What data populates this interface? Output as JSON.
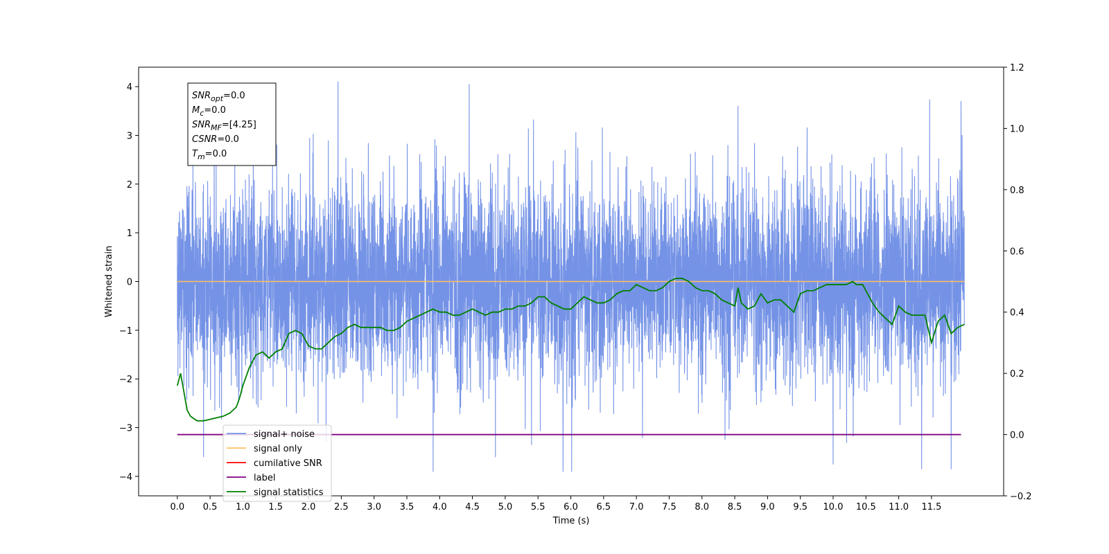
{
  "chart_data": {
    "type": "line",
    "xlabel": "Time (s)",
    "ylabel": "Whitened strain",
    "xlim": [
      -0.59,
      12.6
    ],
    "ylim": [
      -4.4,
      4.4
    ],
    "y2lim": [
      -0.2,
      1.2
    ],
    "x_ticks": [
      0.0,
      0.5,
      1.0,
      1.5,
      2.0,
      2.5,
      3.0,
      3.5,
      4.0,
      4.5,
      5.0,
      5.5,
      6.0,
      6.5,
      7.0,
      7.5,
      8.0,
      8.5,
      9.0,
      9.5,
      10.0,
      10.5,
      11.0,
      11.5
    ],
    "x_tick_labels": [
      "0.0",
      "0.5",
      "1.0",
      "1.5",
      "2.0",
      "2.5",
      "3.0",
      "3.5",
      "4.0",
      "4.5",
      "5.0",
      "5.5",
      "6.0",
      "6.5",
      "7.0",
      "7.5",
      "8.0",
      "8.5",
      "9.0",
      "9.5",
      "10.0",
      "10.5",
      "11.0",
      "11.5"
    ],
    "y_ticks": [
      4,
      3,
      2,
      1,
      0,
      -1,
      -2,
      -3,
      -4
    ],
    "y_tick_labels": [
      "4",
      "3",
      "2",
      "1",
      "0",
      "−1",
      "−2",
      "−3",
      "−4"
    ],
    "y2_ticks": [
      1.2,
      1.0,
      0.8,
      0.6,
      0.4,
      0.2,
      0.0,
      -0.2
    ],
    "y2_tick_labels": [
      "1.2",
      "1.0",
      "0.8",
      "0.6",
      "0.4",
      "0.2",
      "0.0",
      "−0.2"
    ],
    "legend_position": "bottom-left",
    "annotation": {
      "lines": [
        {
          "base": "SNR",
          "sub": "opt",
          "rest": "=0.0"
        },
        {
          "base": "M",
          "sub": "c",
          "rest": "=0.0"
        },
        {
          "base": "SNR",
          "sub": "MF",
          "rest": "=[4.25]"
        },
        {
          "base": "CSNR",
          "sub": "",
          "rest": "=0.0"
        },
        {
          "base": "T",
          "sub": "m",
          "rest": "=0.0"
        }
      ]
    },
    "series": [
      {
        "name": "signal+ noise",
        "color": "#7593e6",
        "axis": "left",
        "kind": "gaussian-noise",
        "x_range": [
          0.0,
          12.0
        ],
        "mean": 0.0,
        "std": 1.0,
        "observed_range": [
          -3.9,
          4.1
        ],
        "peaks": [
          [
            2.45,
            4.1
          ],
          [
            4.45,
            4.05
          ],
          [
            11.95,
            3.7
          ],
          [
            8.55,
            3.6
          ],
          [
            11.35,
            3.55
          ],
          [
            0.4,
            -3.6
          ],
          [
            3.9,
            -3.9
          ],
          [
            10.0,
            -3.75
          ],
          [
            11.35,
            -3.85
          ],
          [
            11.8,
            -3.85
          ],
          [
            4.85,
            -3.6
          ],
          [
            5.4,
            -3.35
          ]
        ]
      },
      {
        "name": "signal only",
        "color": "#ffbf5f",
        "axis": "left",
        "x": [
          0.0,
          12.0
        ],
        "y": [
          0.0,
          0.0
        ]
      },
      {
        "name": "cumilative SNR",
        "color": "#ff0000",
        "axis": "right",
        "x": [],
        "y": []
      },
      {
        "name": "label",
        "color": "#800080",
        "axis": "right",
        "x": [
          0.0,
          11.95
        ],
        "y": [
          0.0,
          0.0
        ]
      },
      {
        "name": "signal statistics",
        "color": "#008000",
        "axis": "right",
        "x": [
          0.0,
          0.05,
          0.1,
          0.15,
          0.2,
          0.3,
          0.4,
          0.5,
          0.6,
          0.7,
          0.8,
          0.9,
          0.95,
          1.0,
          1.1,
          1.2,
          1.3,
          1.4,
          1.5,
          1.6,
          1.7,
          1.8,
          1.9,
          2.0,
          2.1,
          2.2,
          2.3,
          2.4,
          2.5,
          2.6,
          2.7,
          2.8,
          2.9,
          3.0,
          3.1,
          3.2,
          3.3,
          3.4,
          3.5,
          3.6,
          3.7,
          3.8,
          3.9,
          4.0,
          4.1,
          4.2,
          4.3,
          4.4,
          4.5,
          4.6,
          4.7,
          4.8,
          4.9,
          5.0,
          5.1,
          5.2,
          5.3,
          5.4,
          5.5,
          5.6,
          5.7,
          5.8,
          5.9,
          6.0,
          6.1,
          6.2,
          6.3,
          6.4,
          6.5,
          6.6,
          6.7,
          6.8,
          6.9,
          7.0,
          7.1,
          7.2,
          7.3,
          7.4,
          7.5,
          7.6,
          7.7,
          7.8,
          7.9,
          8.0,
          8.1,
          8.2,
          8.3,
          8.4,
          8.5,
          8.55,
          8.6,
          8.7,
          8.8,
          8.9,
          9.0,
          9.1,
          9.2,
          9.3,
          9.4,
          9.5,
          9.6,
          9.7,
          9.8,
          9.9,
          10.0,
          10.1,
          10.2,
          10.3,
          10.35,
          10.45,
          10.5,
          10.6,
          10.7,
          10.8,
          10.9,
          11.0,
          11.1,
          11.2,
          11.3,
          11.4,
          11.5,
          11.6,
          11.7,
          11.8,
          11.9,
          12.0
        ],
        "y": [
          0.16,
          0.2,
          0.14,
          0.08,
          0.06,
          0.045,
          0.045,
          0.05,
          0.055,
          0.06,
          0.07,
          0.09,
          0.12,
          0.16,
          0.22,
          0.26,
          0.27,
          0.25,
          0.27,
          0.28,
          0.33,
          0.34,
          0.33,
          0.29,
          0.28,
          0.28,
          0.3,
          0.32,
          0.33,
          0.35,
          0.36,
          0.35,
          0.35,
          0.35,
          0.35,
          0.34,
          0.34,
          0.35,
          0.37,
          0.38,
          0.39,
          0.4,
          0.41,
          0.4,
          0.4,
          0.39,
          0.39,
          0.4,
          0.41,
          0.4,
          0.39,
          0.4,
          0.4,
          0.41,
          0.41,
          0.42,
          0.42,
          0.43,
          0.45,
          0.45,
          0.43,
          0.42,
          0.41,
          0.41,
          0.43,
          0.45,
          0.44,
          0.43,
          0.43,
          0.44,
          0.46,
          0.47,
          0.47,
          0.49,
          0.48,
          0.47,
          0.47,
          0.48,
          0.5,
          0.51,
          0.51,
          0.5,
          0.48,
          0.47,
          0.47,
          0.46,
          0.44,
          0.43,
          0.42,
          0.48,
          0.43,
          0.41,
          0.42,
          0.46,
          0.43,
          0.44,
          0.44,
          0.42,
          0.4,
          0.46,
          0.47,
          0.47,
          0.48,
          0.49,
          0.49,
          0.49,
          0.49,
          0.5,
          0.49,
          0.49,
          0.47,
          0.43,
          0.4,
          0.38,
          0.36,
          0.42,
          0.4,
          0.39,
          0.39,
          0.39,
          0.3,
          0.37,
          0.39,
          0.33,
          0.35,
          0.36
        ]
      }
    ]
  }
}
